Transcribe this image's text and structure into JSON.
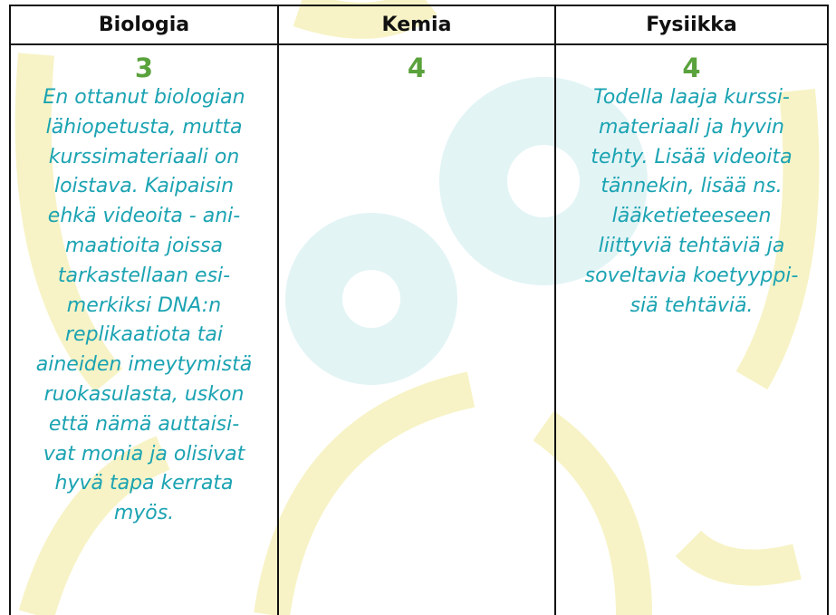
{
  "table": {
    "columns": [
      {
        "header": "Biologia",
        "grade": "3",
        "comment_lines": [
          "En ottanut biologian",
          "lähiopetusta, mutta",
          "kurssimateriaali on",
          "loistava. Kaipaisin",
          "ehkä videoita - ani-",
          "maatioita joissa",
          "tarkastellaan esi-",
          "merkiksi DNA:n",
          "replikaatiota tai",
          "aineiden imeytymistä",
          "ruokasulasta, uskon",
          "että nämä auttaisi-",
          "vat monia ja olisivat",
          "hyvä tapa kerrata",
          "myös."
        ]
      },
      {
        "header": "Kemia",
        "grade": "4"
      },
      {
        "header": "Fysiikka",
        "grade": "4",
        "comment_lines": [
          "Todella laaja kurssi-",
          "materiaali ja hyvin",
          "tehty. Lisää videoita",
          "tännekin, lisää ns.",
          "lääketieteeseen",
          "liittyviä tehtäviä ja",
          "soveltavia koetyyppi-",
          "siä tehtäviä."
        ]
      }
    ]
  }
}
